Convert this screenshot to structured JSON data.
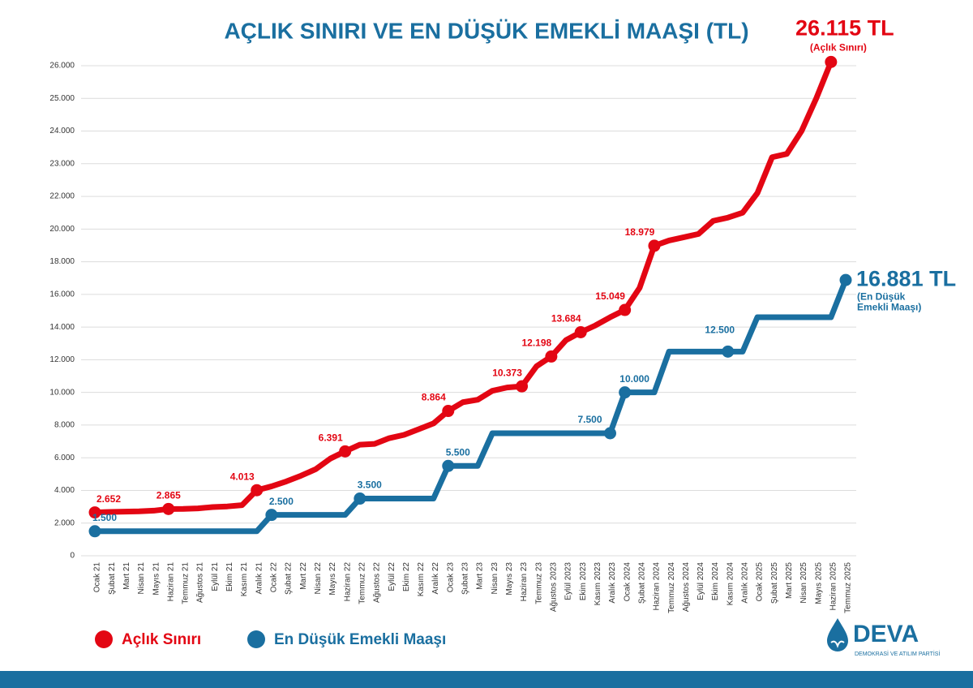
{
  "chart_data": {
    "type": "line",
    "title": "AÇLIK SINIRI VE EN DÜŞÜK EMEKLİ MAAŞI (TL)",
    "categories": [
      "Ocak 21",
      "Şubat 21",
      "Mart 21",
      "Nisan 21",
      "Mayıs 21",
      "Haziran 21",
      "Temmuz 21",
      "Ağustos 21",
      "Eylül 21",
      "Ekim 21",
      "Kasım 21",
      "Aralık 21",
      "Ocak 22",
      "Şubat 22",
      "Mart 22",
      "Nisan 22",
      "Mayıs 22",
      "Haziran 22",
      "Temmuz 22",
      "Ağustos 22",
      "Eylül 22",
      "Ekim 22",
      "Kasım 22",
      "Aralık 22",
      "Ocak 23",
      "Şubat 23",
      "Mart 23",
      "Nisan 23",
      "Mayıs 23",
      "Haziran 23",
      "Temmuz 23",
      "Ağustos 2023",
      "Eylül 2023",
      "Ekim 2023",
      "Kasım 2023",
      "Aralık 2023",
      "Ocak 2024",
      "Şubat 2024",
      "Haziran 2024",
      "Temmuz 2024",
      "Ağustos 2024",
      "Eylül 2024",
      "Ekim 2024",
      "Kasım 2024",
      "Aralık 2024",
      "Ocak 2025",
      "Şubat 2025",
      "Mart 2025",
      "Nisan 2025",
      "Mayıs 2025",
      "Haziran 2025",
      "Temmuz 2025"
    ],
    "series": [
      {
        "name": "Açlık Sınırı",
        "color": "#e30613",
        "values": [
          2652,
          2680,
          2700,
          2720,
          2760,
          2865,
          2870,
          2900,
          2980,
          3020,
          3100,
          4013,
          4250,
          4550,
          4900,
          5300,
          5950,
          6391,
          6800,
          6850,
          7200,
          7400,
          7750,
          8100,
          8864,
          9400,
          9550,
          10100,
          10300,
          10373,
          11600,
          12198,
          13200,
          13684,
          14100,
          14600,
          15049,
          16400,
          18979,
          19300,
          19500,
          19700,
          20500,
          20700,
          21000,
          22100,
          23200,
          23300,
          24000,
          25000,
          26115,
          null
        ],
        "value_labels": [
          "2.652",
          null,
          null,
          null,
          null,
          "2.865",
          null,
          null,
          null,
          null,
          null,
          "4.013",
          null,
          null,
          null,
          null,
          null,
          "6.391",
          null,
          null,
          null,
          null,
          null,
          null,
          "8.864",
          null,
          null,
          null,
          null,
          "10.373",
          null,
          "12.198",
          null,
          "13.684",
          null,
          null,
          "15.049",
          null,
          "18.979",
          null,
          null,
          null,
          null,
          null,
          null,
          null,
          null,
          null,
          null,
          null,
          "26.115 TL",
          null
        ]
      },
      {
        "name": "En Düşük Emekli Maaşı",
        "color": "#1a6fa0",
        "values": [
          1500,
          1500,
          1500,
          1500,
          1500,
          1500,
          1500,
          1500,
          1500,
          1500,
          1500,
          1500,
          2500,
          2500,
          2500,
          2500,
          2500,
          2500,
          3500,
          3500,
          3500,
          3500,
          3500,
          3500,
          5500,
          5500,
          5500,
          7500,
          7500,
          7500,
          7500,
          7500,
          7500,
          7500,
          7500,
          7500,
          10000,
          10000,
          10000,
          12500,
          12500,
          12500,
          12500,
          12500,
          12500,
          14600,
          14600,
          14600,
          14600,
          14600,
          14600,
          16881
        ],
        "value_labels": [
          "1.500",
          null,
          null,
          null,
          null,
          null,
          null,
          null,
          null,
          null,
          null,
          null,
          "2.500",
          null,
          null,
          null,
          null,
          null,
          "3.500",
          null,
          null,
          null,
          null,
          null,
          "5.500",
          null,
          null,
          null,
          null,
          null,
          null,
          null,
          null,
          null,
          null,
          "7.500",
          "10.000",
          null,
          null,
          null,
          null,
          null,
          null,
          "12.500",
          null,
          null,
          null,
          null,
          null,
          null,
          null,
          "16.881 TL"
        ]
      }
    ],
    "annotations": [
      {
        "lines": [
          "(Açlık Sınırı)"
        ]
      },
      {
        "lines": [
          "(En Düşük",
          "Emekli Maaşı)"
        ]
      }
    ],
    "ylim": [
      0,
      26000
    ],
    "yticks": [
      0,
      {
        "value": 2000,
        "label": "2.000"
      },
      {
        "value": 4000,
        "label": "4.000"
      },
      {
        "value": 6000,
        "label": "6.000"
      },
      {
        "value": 8000,
        "label": "8.000"
      },
      {
        "value": 10000,
        "label": "10.000"
      },
      {
        "value": 12000,
        "label": "12.000"
      },
      {
        "value": 14000,
        "label": "14.000"
      },
      {
        "value": 16000,
        "label": "16.000"
      },
      {
        "value": 18000,
        "label": "18.000"
      },
      {
        "value": 20000,
        "label": "20.000"
      },
      {
        "value": 22000,
        "label": "22.000"
      },
      {
        "value": 23000,
        "label": "23.000"
      },
      {
        "value": 24000,
        "label": "24.000"
      },
      {
        "value": 25000,
        "label": "25.000"
      },
      {
        "value": 26000,
        "label": "26.000"
      }
    ],
    "grid": true,
    "logo": {
      "name": "DEVA",
      "subtitle": "DEMOKRASİ VE ATILIM PARTİSİ"
    }
  }
}
